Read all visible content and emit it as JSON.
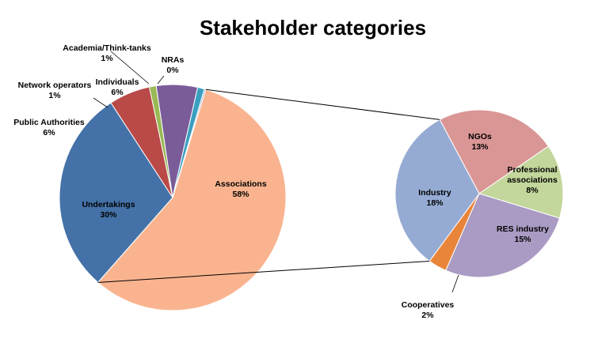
{
  "chart_data": {
    "type": "pie",
    "title": "Stakeholder categories",
    "main": {
      "slices": [
        {
          "label": "Associations",
          "value": "58%",
          "pct": 58,
          "color": "#f9b48f"
        },
        {
          "label": "Undertakings",
          "value": "30%",
          "pct": 30,
          "color": "#4472a8"
        },
        {
          "label": "Public Authorities",
          "value": "6%",
          "pct": 6,
          "color": "#b94a48"
        },
        {
          "label": "Network operators",
          "value": "1%",
          "pct": 1,
          "color": "#98b954"
        },
        {
          "label": "Individuals",
          "value": "6%",
          "pct": 6,
          "color": "#7a5c99"
        },
        {
          "label": "Academia/Think-tanks",
          "value": "1%",
          "pct": 1,
          "color": "#3a9fbf"
        },
        {
          "label": "NRAs",
          "value": "0%",
          "pct": 0.2,
          "color": "#8aa0c8"
        }
      ]
    },
    "breakdown": {
      "of": "Associations",
      "slices": [
        {
          "label": "NGOs",
          "value": "13%",
          "pct": 13,
          "color": "#d99694"
        },
        {
          "label": "Professional associations",
          "value": "8%",
          "pct": 8,
          "color": "#c3d69b"
        },
        {
          "label": "RES industry",
          "value": "15%",
          "pct": 15,
          "color": "#a99bc3"
        },
        {
          "label": "Cooperatives",
          "value": "2%",
          "pct": 2,
          "color": "#e8853a"
        },
        {
          "label": "Industry",
          "value": "18%",
          "pct": 18,
          "color": "#95abd3"
        }
      ]
    }
  }
}
